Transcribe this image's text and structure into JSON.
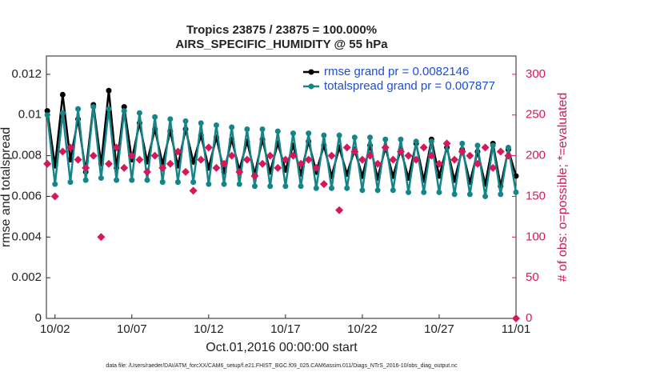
{
  "chart_data": {
    "type": "line",
    "title": "Tropics 23875 / 23875 = 100.000%",
    "subtitle": "AIRS_SPECIFIC_HUMIDITY @ 55 hPa",
    "xlabel": "Oct.01,2016 00:00:00 start",
    "ylabel": "rmse and totalspread",
    "y2label": "# of obs: o=possible; *=evaluated",
    "footnote": "data file: /Users/raeder/DAI/ATM_forcXX/CAM6_setup/f.e21.FHIST_BGC.f09_025.CAM6assim.011/Diags_NTrS_2016-10/obs_diag_output.nc",
    "x": [
      0.5,
      1,
      1.5,
      2,
      2.5,
      3,
      3.5,
      4,
      4.5,
      5,
      5.5,
      6,
      6.5,
      7,
      7.5,
      8,
      8.5,
      9,
      9.5,
      10,
      10.5,
      11,
      11.5,
      12,
      12.5,
      13,
      13.5,
      14,
      14.5,
      15,
      15.5,
      16,
      16.5,
      17,
      17.5,
      18,
      18.5,
      19,
      19.5,
      20,
      20.5,
      21,
      21.5,
      22,
      22.5,
      23,
      23.5,
      24,
      24.5,
      25,
      25.5,
      26,
      26.5,
      27,
      27.5,
      28,
      28.5,
      29,
      29.5,
      30,
      30.5,
      31
    ],
    "xlim": [
      0.44,
      31
    ],
    "xticks": [
      {
        "value": 1,
        "label": "10/02"
      },
      {
        "value": 6,
        "label": "10/07"
      },
      {
        "value": 11,
        "label": "10/12"
      },
      {
        "value": 16,
        "label": "10/17"
      },
      {
        "value": 21,
        "label": "10/22"
      },
      {
        "value": 26,
        "label": "10/27"
      },
      {
        "value": 31,
        "label": "11/01"
      }
    ],
    "ylim": [
      0,
      0.0129
    ],
    "yticks": [
      0,
      0.002,
      0.004,
      0.006,
      0.008,
      0.01,
      0.012
    ],
    "y2lim": [
      0,
      322.5
    ],
    "y2ticks": [
      0,
      50,
      100,
      150,
      200,
      250,
      300
    ],
    "legend": "upper right",
    "series": [
      {
        "name": "rmse grand pr = 0.0082146",
        "color": "#000000",
        "values": [
          0.0102,
          0.0075,
          0.011,
          0.0078,
          0.0098,
          0.0072,
          0.0105,
          0.0076,
          0.0112,
          0.0074,
          0.0104,
          0.0078,
          0.0096,
          0.0077,
          0.0093,
          0.0076,
          0.0092,
          0.0075,
          0.0093,
          0.0077,
          0.009,
          0.0074,
          0.0089,
          0.0072,
          0.0088,
          0.0073,
          0.0087,
          0.0071,
          0.0088,
          0.0072,
          0.0086,
          0.0073,
          0.0085,
          0.0071,
          0.0087,
          0.0072,
          0.0085,
          0.007,
          0.0084,
          0.0071,
          0.0083,
          0.007,
          0.0085,
          0.0069,
          0.0084,
          0.007,
          0.0083,
          0.0069,
          0.0086,
          0.0068,
          0.0088,
          0.007,
          0.0084,
          0.0068,
          0.0083,
          0.0067,
          0.0082,
          0.0066,
          0.0086,
          0.0065,
          0.0083,
          0.007
        ]
      },
      {
        "name": "totalspread grand pr = 0.007877",
        "color": "#14868a",
        "values": [
          0.01,
          0.0066,
          0.0101,
          0.0067,
          0.0103,
          0.0068,
          0.0104,
          0.0069,
          0.0103,
          0.0068,
          0.0102,
          0.0068,
          0.0101,
          0.0068,
          0.0099,
          0.0067,
          0.0098,
          0.0067,
          0.0097,
          0.0067,
          0.0096,
          0.0066,
          0.0095,
          0.0066,
          0.0094,
          0.0066,
          0.0093,
          0.0065,
          0.0093,
          0.0065,
          0.0092,
          0.0065,
          0.0091,
          0.0065,
          0.0091,
          0.0064,
          0.009,
          0.0064,
          0.009,
          0.0064,
          0.0089,
          0.0063,
          0.0089,
          0.0063,
          0.0088,
          0.0063,
          0.0088,
          0.0062,
          0.0087,
          0.0062,
          0.0087,
          0.0062,
          0.0086,
          0.0061,
          0.0086,
          0.0061,
          0.0085,
          0.006,
          0.0085,
          0.0061,
          0.0084,
          0.0062
        ]
      },
      {
        "color": "#d6185a",
        "axis": "y2",
        "values": [
          190,
          150,
          205,
          210,
          195,
          185,
          200,
          100,
          190,
          210,
          185,
          200,
          195,
          180,
          200,
          185,
          190,
          205,
          180,
          157,
          195,
          210,
          185,
          190,
          200,
          180,
          195,
          175,
          190,
          200,
          185,
          195,
          200,
          190,
          195,
          185,
          165,
          200,
          133,
          210,
          205,
          195,
          200,
          190,
          210,
          195,
          205,
          200,
          195,
          210,
          200,
          190,
          215,
          195,
          205,
          200,
          190,
          210,
          185,
          205,
          200,
          0
        ]
      }
    ]
  }
}
